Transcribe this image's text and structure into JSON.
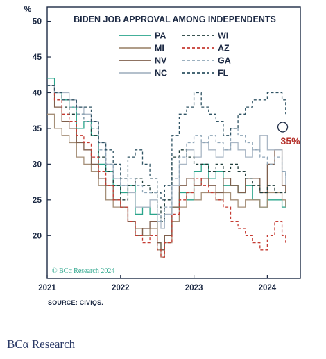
{
  "chart_data": {
    "type": "line",
    "title": "BIDEN JOB APPROVAL AMONG INDEPENDENTS",
    "ylabel": "%",
    "xlabel": "",
    "ylim": [
      14,
      52
    ],
    "xlim": [
      2021.0,
      2024.45
    ],
    "yticks": [
      20,
      25,
      30,
      35,
      40,
      45,
      50
    ],
    "xticks": [
      2021,
      2022,
      2023,
      2024
    ],
    "xtick_labels": [
      "2021",
      "2022",
      "2023",
      "2024"
    ],
    "grid": false,
    "legend": "top-center",
    "x": [
      2021.0,
      2021.1,
      2021.2,
      2021.3,
      2021.4,
      2021.5,
      2021.6,
      2021.7,
      2021.8,
      2021.9,
      2022.0,
      2022.1,
      2022.2,
      2022.3,
      2022.4,
      2022.5,
      2022.55,
      2022.6,
      2022.7,
      2022.8,
      2022.9,
      2023.0,
      2023.1,
      2023.2,
      2023.3,
      2023.4,
      2023.5,
      2023.6,
      2023.7,
      2023.8,
      2023.9,
      2024.0,
      2024.1,
      2024.2,
      2024.25
    ],
    "series": [
      {
        "name": "PA",
        "color": "#2aa58b",
        "dash": "solid",
        "values": [
          42,
          40,
          39,
          38,
          35,
          36,
          34,
          30,
          29,
          27,
          26,
          27,
          23,
          24,
          23,
          19,
          18,
          20,
          24,
          26,
          25,
          29,
          30,
          28,
          29,
          27,
          27,
          26,
          27,
          25,
          24,
          25,
          25,
          24,
          25
        ]
      },
      {
        "name": "MI",
        "color": "#a58f78",
        "dash": "solid",
        "values": [
          37,
          35,
          34,
          33,
          31,
          30,
          29,
          27,
          25,
          24,
          24,
          22,
          21,
          20,
          21,
          18,
          17,
          19,
          22,
          24,
          26,
          25,
          26,
          26,
          25,
          26,
          25,
          24,
          25,
          25,
          24,
          26,
          26,
          25,
          24
        ]
      },
      {
        "name": "NV",
        "color": "#7f5f4c",
        "dash": "solid",
        "values": [
          41,
          38,
          36,
          35,
          33,
          32,
          30,
          28,
          27,
          25,
          24,
          22,
          20,
          21,
          22,
          19,
          18,
          20,
          24,
          27,
          28,
          27,
          28,
          27,
          26,
          28,
          27,
          26,
          28,
          28,
          26,
          30,
          32,
          27,
          26
        ]
      },
      {
        "name": "NC",
        "color": "#aab7c5",
        "dash": "solid",
        "values": [
          41,
          40,
          40,
          39,
          38,
          37,
          36,
          33,
          30,
          28,
          27,
          26,
          24,
          24,
          25,
          22,
          21,
          23,
          27,
          30,
          32,
          31,
          33,
          32,
          31,
          32,
          33,
          32,
          31,
          32,
          34,
          32,
          32,
          29,
          27
        ]
      },
      {
        "name": "WI",
        "color": "#1f3d3a",
        "dash": "4,3",
        "values": [
          41,
          39,
          38,
          37,
          37,
          36,
          34,
          31,
          29,
          27,
          25,
          27,
          28,
          27,
          26,
          24,
          22,
          25,
          31,
          32,
          31,
          30,
          30,
          29,
          30,
          29,
          30,
          29,
          28,
          27,
          26,
          27,
          26,
          26,
          26
        ]
      },
      {
        "name": "AZ",
        "color": "#c63b32",
        "dash": "4,3",
        "values": [
          41,
          39,
          37,
          36,
          34,
          33,
          31,
          29,
          27,
          25,
          24,
          22,
          20,
          19,
          20,
          18,
          17,
          19,
          23,
          25,
          26,
          28,
          27,
          26,
          25,
          24,
          22,
          21,
          20,
          19,
          18,
          20,
          22,
          20,
          19
        ]
      },
      {
        "name": "GA",
        "color": "#8fa6b8",
        "dash": "4,3",
        "values": [
          41,
          40,
          39,
          38,
          37,
          36,
          35,
          32,
          30,
          28,
          27,
          28,
          27,
          26,
          26,
          23,
          22,
          24,
          28,
          31,
          33,
          34,
          33,
          34,
          33,
          32,
          35,
          34,
          33,
          32,
          31,
          30,
          31,
          29,
          28
        ]
      },
      {
        "name": "FL",
        "color": "#2f5363",
        "dash": "4,3",
        "values": [
          41,
          40,
          39,
          39,
          38,
          38,
          36,
          33,
          32,
          30,
          28,
          31,
          32,
          30,
          28,
          26,
          25,
          27,
          34,
          37,
          38,
          40,
          38,
          37,
          36,
          34,
          35,
          37,
          38,
          39,
          39,
          40,
          40,
          39,
          37
        ]
      }
    ],
    "annotation": {
      "text": "35%",
      "x": 2024.2,
      "y": 35,
      "color": "#b4302a"
    },
    "watermark": "© BCα Research 2024"
  },
  "source": "SOURCE: CIVIQS.",
  "brand": "BCα Research"
}
